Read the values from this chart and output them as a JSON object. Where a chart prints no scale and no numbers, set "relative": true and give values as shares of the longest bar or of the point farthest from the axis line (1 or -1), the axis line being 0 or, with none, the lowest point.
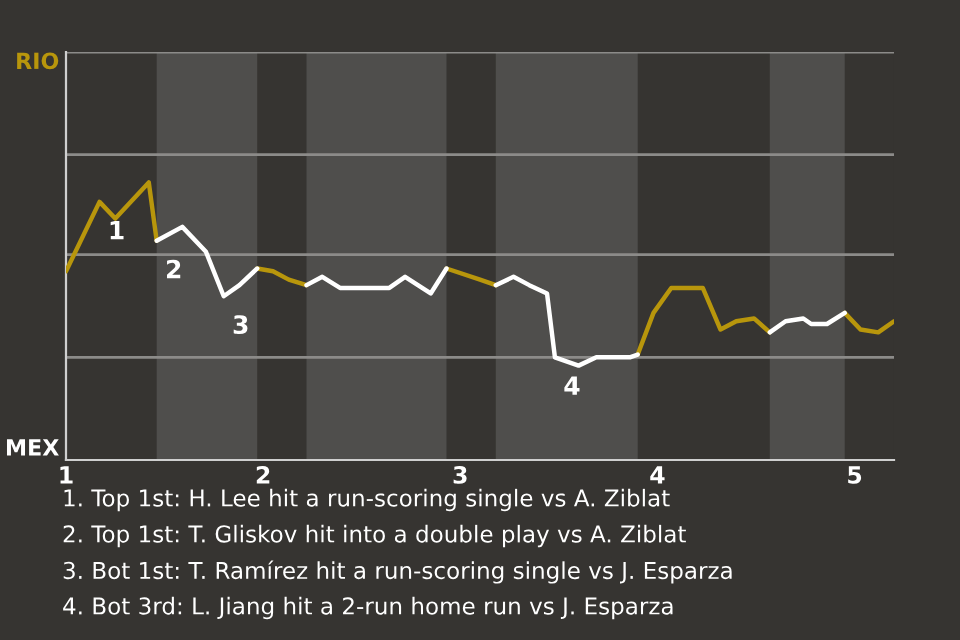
{
  "chart_data": {
    "type": "line",
    "relative": true,
    "xlim": [
      1,
      5.2
    ],
    "xticks": [
      1,
      2,
      3,
      4,
      5
    ],
    "ref_lines": [
      {
        "axis": "y",
        "value": 0.37,
        "label": null,
        "color": "#8c8b89"
      },
      {
        "axis": "y",
        "value": 0.74,
        "label": null,
        "color": "#8c8b89"
      },
      {
        "axis": "y",
        "value": 1.1,
        "label": null,
        "color": "#8c8b89"
      },
      {
        "axis": "y",
        "value": 1.47,
        "label": null,
        "color": "#8c8b89"
      }
    ],
    "series": [
      {
        "color": "#b8960c",
        "x": [
          1.0,
          1.17,
          1.25,
          1.42,
          1.46,
          1.71,
          1.97,
          2.05,
          2.13,
          2.22,
          2.6,
          2.93,
          3.1,
          3.18,
          3.5,
          3.9,
          3.98,
          4.07,
          4.23,
          4.32,
          4.4,
          4.49,
          4.57,
          4.8,
          4.95,
          5.03,
          5.12,
          5.2
        ],
        "values": [
          0.68,
          0.93,
          0.87,
          1,
          0.79,
          null,
          0.69,
          0.68,
          0.65,
          0.63,
          null,
          0.69,
          0.65,
          0.63,
          null,
          0.38,
          0.53,
          0.62,
          0.62,
          0.47,
          0.5,
          0.51,
          0.46,
          null,
          0.53,
          0.47,
          0.46,
          0.5
        ]
      },
      {
        "color": "#ffffff",
        "x": [
          1.46,
          1.59,
          1.71,
          1.8,
          1.88,
          1.97,
          2.1,
          2.22,
          2.3,
          2.39,
          2.64,
          2.72,
          2.85,
          2.93,
          3.05,
          3.18,
          3.27,
          3.35,
          3.44,
          3.48,
          3.6,
          3.69,
          3.86,
          3.9,
          4.2,
          4.57,
          4.65,
          4.74,
          4.78,
          4.86,
          4.95
        ],
        "values": [
          0.79,
          0.84,
          0.75,
          0.59,
          0.63,
          0.69,
          null,
          0.63,
          0.66,
          0.62,
          0.62,
          0.66,
          0.6,
          0.69,
          null,
          0.63,
          0.66,
          0.63,
          0.6,
          0.37,
          0.34,
          0.37,
          0.37,
          0.38,
          null,
          0.46,
          0.5,
          0.51,
          0.49,
          0.49,
          0.53
        ]
      }
    ],
    "bands": [
      {
        "axis": "x",
        "from": 1.46,
        "to": 1.97,
        "color": "#4f4e4c"
      },
      {
        "axis": "x",
        "from": 2.22,
        "to": 2.93,
        "color": "#4f4e4c"
      },
      {
        "axis": "x",
        "from": 3.18,
        "to": 3.9,
        "color": "#4f4e4c"
      },
      {
        "axis": "x",
        "from": 4.57,
        "to": 4.95,
        "color": "#4f4e4c"
      }
    ],
    "annotations": [
      "RIO",
      "MEX",
      {
        "text": "1",
        "x": 1.17,
        "y": 0.93
      },
      {
        "text": "2",
        "x": 1.46,
        "y": 0.79
      },
      {
        "text": "3",
        "x": 1.8,
        "y": 0.59
      },
      {
        "text": "4",
        "x": 3.48,
        "y": 0.37
      },
      "1. Top 1st: H. Lee hit a run-scoring single vs A. Ziblat",
      "2. Top 1st: T. Gliskov hit into a double play vs A. Ziblat",
      "3. Bot 1st: T. Ramírez hit a run-scoring single vs J. Esparza",
      "4. Bot 3rd: L. Jiang hit a 2-run home run vs J. Esparza"
    ]
  }
}
